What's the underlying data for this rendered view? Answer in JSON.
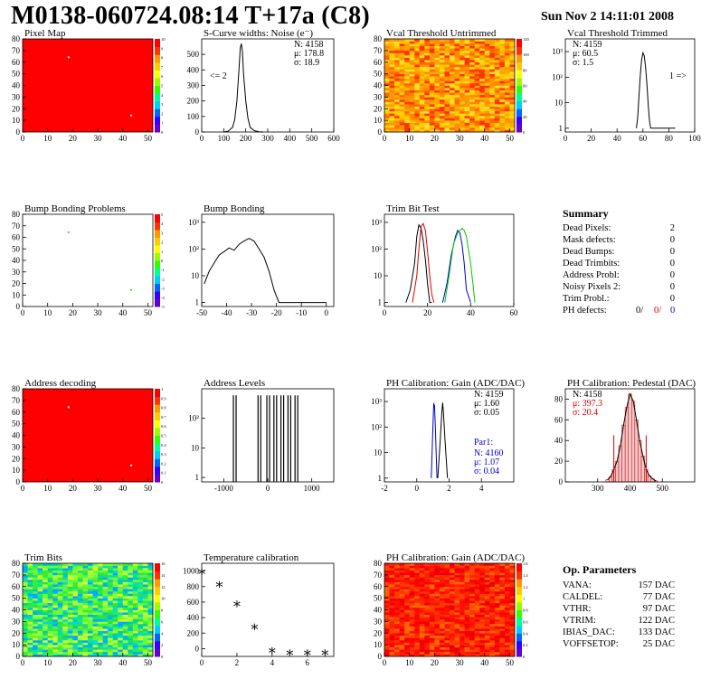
{
  "header": {
    "title": "M0138-060724.08:14 T+17a (C8)",
    "date": "Sun Nov  2 14:11:01 2008"
  },
  "colors": {
    "map_red": "#ff0000",
    "green_trace": "#00cc00",
    "blue_trace": "#0000cc",
    "red_trace": "#dd0000",
    "pedestal_fill": "#cc0000"
  },
  "chart_data": [
    {
      "id": "pixel-map",
      "type": "heatmap",
      "title": "Pixel Map",
      "xlim": [
        0,
        52
      ],
      "ylim": [
        0,
        80
      ],
      "x_ticks": [
        "0",
        "10",
        "20",
        "30",
        "40",
        "50"
      ],
      "y_ticks": [
        "0",
        "10",
        "20",
        "30",
        "40",
        "50",
        "60",
        "70",
        "80"
      ],
      "z_ticks": [
        "0",
        "1",
        "2",
        "3",
        "4",
        "5",
        "6",
        "7",
        "8",
        "9",
        "10"
      ],
      "fill": "uniform red (value 10)",
      "white_pixels": [
        [
          18,
          64
        ],
        [
          43,
          14
        ]
      ]
    },
    {
      "id": "scurve-noise",
      "type": "line",
      "title": "S-Curve widths: Noise (e⁻)",
      "xlim": [
        0,
        600
      ],
      "x_ticks": [
        "0",
        "100",
        "200",
        "300",
        "400",
        "500",
        "600"
      ],
      "y_ticks": [
        "0",
        "100",
        "200",
        "300",
        "400",
        "500"
      ],
      "stats": {
        "n": "N: 4158",
        "mu": "μ: 178.8",
        "sigma": "σ: 18.9"
      },
      "underflow": "<= 2",
      "x": [
        100,
        120,
        140,
        150,
        160,
        170,
        175,
        180,
        185,
        190,
        200,
        210,
        220,
        240,
        260,
        280
      ],
      "y": [
        0,
        5,
        30,
        80,
        200,
        420,
        540,
        570,
        520,
        380,
        200,
        90,
        30,
        8,
        2,
        0
      ]
    },
    {
      "id": "vcal-untrimmed",
      "type": "heatmap",
      "title": "Vcal Threshold Untrimmed",
      "xlim": [
        0,
        52
      ],
      "ylim": [
        0,
        80
      ],
      "x_ticks": [
        "0",
        "10",
        "20",
        "30",
        "40",
        "50"
      ],
      "y_ticks": [
        "0",
        "10",
        "20",
        "30",
        "40",
        "50",
        "60",
        "70",
        "80"
      ],
      "z_ticks": [
        "0",
        "20",
        "40",
        "60",
        "80",
        "100",
        "120"
      ],
      "fill": "orange/yellow noise"
    },
    {
      "id": "vcal-trimmed",
      "type": "line",
      "title": "Vcal Threshold Trimmed",
      "xlim": [
        0,
        100
      ],
      "log_y": true,
      "x_ticks": [
        "0",
        "20",
        "40",
        "60",
        "80",
        "100"
      ],
      "y_ticks": [
        "1",
        "10",
        "10²",
        "10³"
      ],
      "stats": {
        "n": "N: 4159",
        "mu": "μ: 60.5",
        "sigma": "σ:  1.5"
      },
      "overflow": "1 =>",
      "x": [
        55,
        56,
        57,
        58,
        59,
        60,
        61,
        62,
        63,
        64,
        65,
        66,
        84,
        85
      ],
      "y": [
        1,
        3,
        20,
        120,
        500,
        900,
        700,
        250,
        60,
        10,
        2,
        1,
        1,
        1
      ]
    },
    {
      "id": "bump-problems",
      "type": "heatmap",
      "title": "Bump Bonding Problems",
      "xlim": [
        0,
        52
      ],
      "ylim": [
        0,
        80
      ],
      "x_ticks": [
        "0",
        "10",
        "20",
        "30",
        "40",
        "50"
      ],
      "y_ticks": [
        "0",
        "10",
        "20",
        "30",
        "40",
        "50",
        "60",
        "70",
        "80"
      ],
      "z_ticks": [
        "-5",
        "-4",
        "-3",
        "-2",
        "-1",
        "0",
        "1",
        "2",
        "3",
        "4",
        "5"
      ],
      "fill": "white background",
      "green_pixels": [
        [
          18,
          64
        ],
        [
          43,
          14
        ]
      ]
    },
    {
      "id": "bump-bonding",
      "type": "line",
      "title": "Bump Bonding",
      "xlim": [
        -50,
        3
      ],
      "log_y": true,
      "x_ticks": [
        "-50",
        "-40",
        "-30",
        "-20",
        "-10",
        "0"
      ],
      "y_ticks": [
        "1",
        "10",
        "10²",
        "10³"
      ],
      "x": [
        -49,
        -47,
        -45,
        -43,
        -41,
        -39,
        -37,
        -35,
        -33,
        -31,
        -29,
        -27,
        -25,
        -23,
        -21,
        -19,
        -16,
        -15,
        -1,
        0
      ],
      "y": [
        5,
        15,
        30,
        60,
        80,
        110,
        90,
        150,
        200,
        250,
        200,
        100,
        50,
        15,
        3,
        1,
        1,
        1,
        1,
        1
      ]
    },
    {
      "id": "trim-bit-test",
      "type": "line",
      "title": "Trim Bit Test",
      "xlim": [
        0,
        60
      ],
      "log_y": true,
      "x_ticks": [
        "0",
        "20",
        "40",
        "60"
      ],
      "y_ticks": [
        "1",
        "10",
        "10²",
        "10³"
      ],
      "series": [
        {
          "color": "#000000",
          "x": [
            10,
            12,
            14,
            15,
            16,
            17,
            18,
            19,
            20,
            21,
            22
          ],
          "y": [
            1,
            3,
            30,
            300,
            800,
            600,
            200,
            40,
            5,
            1,
            1
          ]
        },
        {
          "color": "#dd0000",
          "x": [
            13,
            15,
            16,
            17,
            18,
            19,
            20,
            21,
            22,
            23
          ],
          "y": [
            1,
            10,
            100,
            700,
            900,
            500,
            80,
            10,
            2,
            1
          ]
        },
        {
          "color": "#0000cc",
          "x": [
            27,
            29,
            31,
            33,
            34,
            35,
            36,
            37,
            38,
            40
          ],
          "y": [
            1,
            5,
            60,
            300,
            500,
            400,
            150,
            30,
            3,
            1
          ]
        },
        {
          "color": "#00cc00",
          "x": [
            28,
            30,
            32,
            34,
            36,
            37,
            38,
            40,
            42
          ],
          "y": [
            1,
            10,
            150,
            400,
            600,
            500,
            300,
            30,
            1
          ]
        }
      ]
    },
    {
      "id": "address-decoding",
      "type": "heatmap",
      "title": "Address decoding",
      "xlim": [
        0,
        52
      ],
      "ylim": [
        0,
        80
      ],
      "x_ticks": [
        "0",
        "10",
        "20",
        "30",
        "40",
        "50"
      ],
      "y_ticks": [
        "0",
        "10",
        "20",
        "30",
        "40",
        "50",
        "60",
        "70",
        "80"
      ],
      "z_ticks": [
        "0",
        "0.1",
        "0.2",
        "0.3",
        "0.4",
        "0.5",
        "0.6",
        "0.7",
        "0.8",
        "0.9",
        "1"
      ],
      "fill": "uniform red (value 1)",
      "white_pixels": [
        [
          18,
          64
        ],
        [
          43,
          14
        ]
      ]
    },
    {
      "id": "address-levels",
      "type": "line",
      "title": "Address Levels",
      "xlim": [
        -1500,
        1500
      ],
      "log_y": true,
      "x_ticks": [
        "-1000",
        "0",
        "1000"
      ],
      "y_ticks": [
        "1",
        "10",
        "10²"
      ],
      "peaks_x": [
        -780,
        -220,
        -20,
        140,
        300,
        460,
        620
      ],
      "peaks_y": [
        600,
        600,
        600,
        600,
        600,
        600,
        600
      ]
    },
    {
      "id": "ph-gain",
      "type": "line",
      "title": "PH Calibration: Gain (ADC/DAC)",
      "xlim": [
        -2,
        6
      ],
      "log_y": true,
      "x_ticks": [
        "-2",
        "0",
        "2",
        "4"
      ],
      "y_ticks": [
        "1",
        "10",
        "10²",
        "10³"
      ],
      "stats": {
        "n": "N: 4159",
        "mu": "μ: 1.60",
        "sigma": "σ: 0.05"
      },
      "par_stats": {
        "label": "Par1:",
        "n": "N: 4160",
        "mu": "μ: 1.07",
        "sigma": "σ: 0.04"
      },
      "series": [
        {
          "color": "#000000",
          "x": [
            1.3,
            1.45,
            1.55,
            1.6,
            1.65,
            1.75,
            1.9
          ],
          "y": [
            1,
            30,
            400,
            900,
            400,
            30,
            1
          ]
        },
        {
          "color": "#0000cc",
          "x": [
            0.9,
            1.0,
            1.05,
            1.1,
            1.15,
            1.25
          ],
          "y": [
            1,
            100,
            800,
            700,
            100,
            1
          ]
        }
      ]
    },
    {
      "id": "ph-pedestal",
      "type": "line",
      "title": "PH Calibration: Pedestal (DAC)",
      "xlim": [
        200,
        600
      ],
      "x_ticks": [
        "300",
        "400",
        "500"
      ],
      "y_ticks": [
        "0",
        "20",
        "40",
        "60",
        "80"
      ],
      "stats": {
        "n": "N: 4158",
        "mu": "μ: 397.3",
        "sigma": "σ: 20.4"
      },
      "cut_lines_x": [
        350,
        450
      ],
      "x": [
        330,
        340,
        350,
        360,
        370,
        380,
        390,
        400,
        410,
        420,
        430,
        440,
        450,
        460,
        470,
        480
      ],
      "y": [
        2,
        5,
        12,
        20,
        35,
        55,
        72,
        85,
        78,
        60,
        40,
        25,
        12,
        6,
        3,
        1
      ]
    },
    {
      "id": "trim-bits",
      "type": "heatmap",
      "title": "Trim Bits",
      "xlim": [
        0,
        52
      ],
      "ylim": [
        0,
        80
      ],
      "x_ticks": [
        "0",
        "10",
        "20",
        "30",
        "40",
        "50"
      ],
      "y_ticks": [
        "0",
        "10",
        "20",
        "30",
        "40",
        "50",
        "60",
        "70",
        "80"
      ],
      "z_ticks": [
        "0",
        "2",
        "4",
        "6",
        "8",
        "10",
        "12",
        "14",
        "16"
      ],
      "fill": "green/cyan noise"
    },
    {
      "id": "temperature-calibration",
      "type": "scatter",
      "title": "Temperature calibration",
      "xlim": [
        0,
        7.5
      ],
      "ylim": [
        -100,
        1100
      ],
      "x_ticks": [
        "0",
        "2",
        "4",
        "6"
      ],
      "y_ticks": [
        "0",
        "200",
        "400",
        "600",
        "800",
        "1000"
      ],
      "x": [
        0,
        1,
        2,
        3,
        4,
        5,
        6,
        7
      ],
      "y": [
        1000,
        840,
        590,
        290,
        -10,
        -40,
        -40,
        -40
      ]
    },
    {
      "id": "ph-gain-map",
      "type": "heatmap",
      "title": "PH Calibration: Gain (ADC/DAC)",
      "xlim": [
        0,
        52
      ],
      "ylim": [
        0,
        80
      ],
      "x_ticks": [
        "0",
        "10",
        "20",
        "30",
        "40",
        "50"
      ],
      "y_ticks": [
        "0",
        "10",
        "20",
        "30",
        "40",
        "50",
        "60",
        "70",
        "80"
      ],
      "z_ticks": [
        "0",
        "0.2",
        "0.4",
        "0.6",
        "0.8",
        "1",
        "1.2",
        "1.4",
        "1.6"
      ],
      "fill": "red/orange noise"
    }
  ],
  "summary": {
    "title": "Summary",
    "rows": [
      {
        "label": "Dead Pixels:",
        "value": "2"
      },
      {
        "label": "Mask defects:",
        "value": "0"
      },
      {
        "label": "Dead Bumps:",
        "value": "0"
      },
      {
        "label": "Dead Trimbits:",
        "value": "0"
      },
      {
        "label": "Address Probl:",
        "value": "0"
      },
      {
        "label": "Noisy Pixels 2:",
        "value": "0"
      },
      {
        "label": "Trim Probl.:",
        "value": "0"
      }
    ],
    "ph_defects_label": "PH defects:",
    "ph_defects": [
      "0/",
      "0/",
      "0"
    ]
  },
  "op_params": {
    "title": "Op. Parameters",
    "rows": [
      {
        "label": "VANA:",
        "value": "157 DAC"
      },
      {
        "label": "CALDEL:",
        "value": "77 DAC"
      },
      {
        "label": "VTHR:",
        "value": "97 DAC"
      },
      {
        "label": "VTRIM:",
        "value": "122 DAC"
      },
      {
        "label": "IBIAS_DAC:",
        "value": "133 DAC"
      },
      {
        "label": "VOFFSETOP:",
        "value": "25 DAC"
      }
    ]
  }
}
